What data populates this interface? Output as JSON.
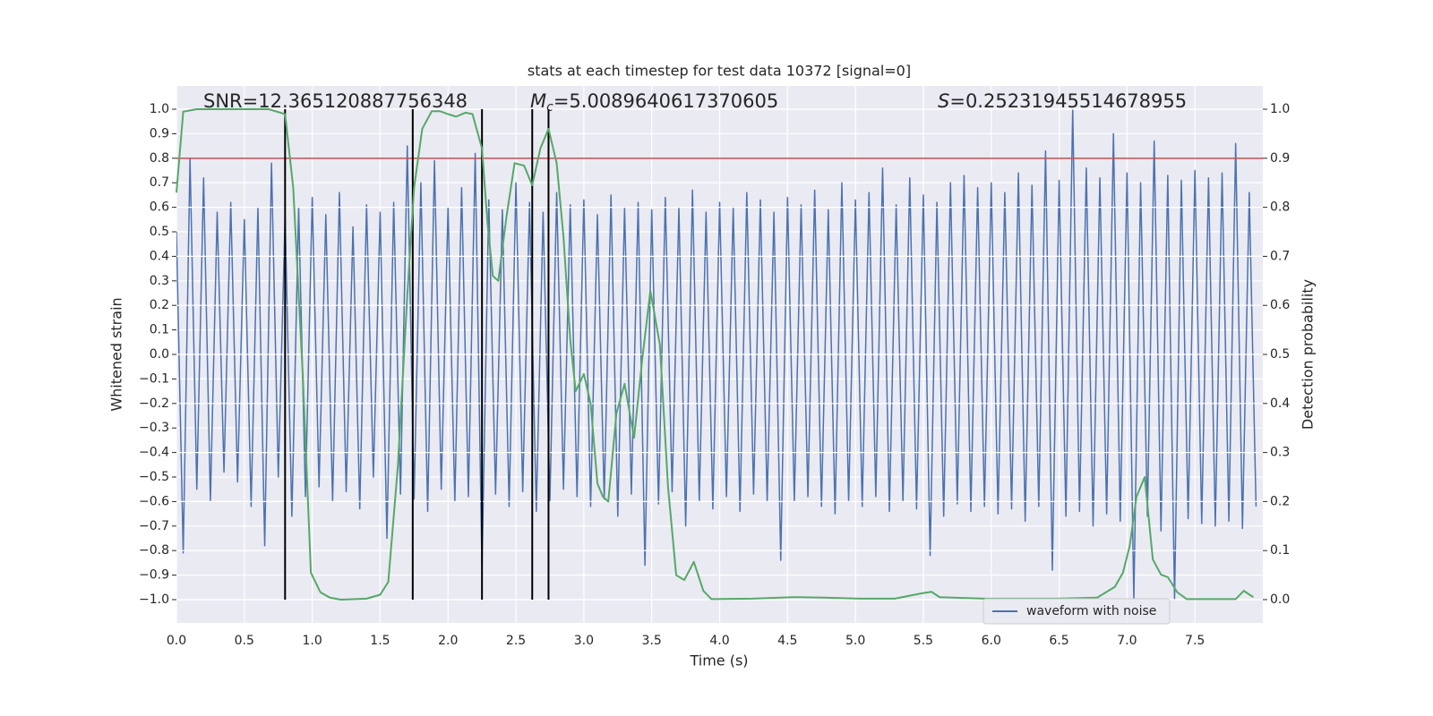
{
  "chart_data": {
    "type": "line",
    "title": "stats at each timestep for test data 10372 [signal=0]",
    "xlabel": "Time (s)",
    "ylabel": "Whitened strain",
    "y2label": "Detection probability",
    "xlim": [
      0,
      8.0
    ],
    "ylim": [
      -1.095,
      1.095
    ],
    "y2lim": [
      -0.0475,
      1.0475
    ],
    "xticks": [
      {
        "value": 0,
        "label": "0.0"
      },
      0.5,
      {
        "value": 1,
        "label": "1.0"
      },
      1.5,
      {
        "value": 2,
        "label": "2.0"
      },
      2.5,
      {
        "value": 3,
        "label": "3.0"
      },
      3.5,
      {
        "value": 4,
        "label": "4.0"
      },
      4.5,
      {
        "value": 5,
        "label": "5.0"
      },
      5.5,
      {
        "value": 6,
        "label": "6.0"
      },
      6.5,
      {
        "value": 7,
        "label": "7.0"
      },
      7.5
    ],
    "yticks": [
      {
        "value": -1,
        "label": "−1.0"
      },
      {
        "value": -0.9,
        "label": "−0.9"
      },
      {
        "value": -0.8,
        "label": "−0.8"
      },
      {
        "value": -0.7,
        "label": "−0.7"
      },
      {
        "value": -0.6,
        "label": "−0.6"
      },
      {
        "value": -0.5,
        "label": "−0.5"
      },
      {
        "value": -0.4,
        "label": "−0.4"
      },
      {
        "value": -0.3,
        "label": "−0.3"
      },
      {
        "value": -0.2,
        "label": "−0.2"
      },
      {
        "value": -0.1,
        "label": "−0.1"
      },
      {
        "value": 0,
        "label": "0.0"
      },
      0.1,
      0.2,
      0.3,
      0.4,
      0.5,
      0.6,
      0.7,
      0.8,
      0.9,
      {
        "value": 1,
        "label": "1.0"
      }
    ],
    "y2ticks": [
      {
        "value": 0,
        "label": "0.0"
      },
      0.1,
      0.2,
      0.3,
      0.4,
      0.5,
      0.6,
      0.7,
      0.8,
      0.9,
      {
        "value": 1,
        "label": "1.0"
      }
    ],
    "grid": true,
    "legend": "lower right",
    "series": [
      {
        "name": "waveform with noise",
        "color": "#4c72b0",
        "x": [
          0,
          0.05,
          0.1,
          0.15,
          0.2,
          0.25,
          0.3,
          0.35,
          0.4,
          0.45,
          0.5,
          0.55,
          0.6,
          0.65,
          0.7,
          0.75,
          0.8,
          0.85,
          0.9,
          0.95,
          1,
          1.05,
          1.1,
          1.15,
          1.2,
          1.25,
          1.3,
          1.35,
          1.4,
          1.45,
          1.5,
          1.55,
          1.6,
          1.65,
          1.7,
          1.75,
          1.8,
          1.85,
          1.9,
          1.95,
          2,
          2.05,
          2.1,
          2.15,
          2.2,
          2.25,
          2.3,
          2.35,
          2.4,
          2.45,
          2.5,
          2.55,
          2.6,
          2.65,
          2.7,
          2.75,
          2.8,
          2.85,
          2.9,
          2.95,
          3,
          3.05,
          3.1,
          3.15,
          3.2,
          3.25,
          3.3,
          3.35,
          3.4,
          3.45,
          3.5,
          3.55,
          3.6,
          3.65,
          3.7,
          3.75,
          3.8,
          3.85,
          3.9,
          3.95,
          4,
          4.05,
          4.1,
          4.15,
          4.2,
          4.25,
          4.3,
          4.35,
          4.4,
          4.45,
          4.5,
          4.55,
          4.6,
          4.65,
          4.7,
          4.75,
          4.8,
          4.85,
          4.9,
          4.95,
          5,
          5.05,
          5.1,
          5.15,
          5.2,
          5.25,
          5.3,
          5.35,
          5.4,
          5.45,
          5.5,
          5.55,
          5.6,
          5.65,
          5.7,
          5.75,
          5.8,
          5.85,
          5.9,
          5.95,
          6,
          6.05,
          6.1,
          6.15,
          6.2,
          6.25,
          6.3,
          6.35,
          6.4,
          6.45,
          6.5,
          6.55,
          6.6,
          6.65,
          6.7,
          6.75,
          6.8,
          6.85,
          6.9,
          6.95,
          7,
          7.05,
          7.1,
          7.15,
          7.2,
          7.25,
          7.3,
          7.35,
          7.4,
          7.45,
          7.5,
          7.55,
          7.6,
          7.65,
          7.7,
          7.75,
          7.8,
          7.85,
          7.9,
          7.95
        ],
        "values": [
          0.5,
          -0.81,
          0.8,
          -0.55,
          0.72,
          -0.6,
          0.58,
          -0.48,
          0.62,
          -0.52,
          0.55,
          -0.62,
          0.6,
          -0.78,
          0.78,
          -0.5,
          0.56,
          -0.66,
          0.6,
          -0.58,
          0.64,
          -0.54,
          0.57,
          -0.6,
          0.66,
          -0.56,
          0.52,
          -0.63,
          0.61,
          -0.5,
          0.58,
          -0.75,
          0.62,
          -0.57,
          0.85,
          -0.59,
          0.7,
          -0.64,
          0.79,
          -0.55,
          0.6,
          -0.6,
          0.68,
          -0.58,
          0.82,
          -0.88,
          0.63,
          -0.57,
          0.59,
          -0.62,
          0.7,
          -0.56,
          0.62,
          -0.64,
          0.58,
          -0.6,
          0.66,
          -0.55,
          0.61,
          -0.58,
          0.63,
          -0.62,
          0.57,
          -0.59,
          0.65,
          -0.66,
          0.6,
          -0.57,
          0.62,
          -0.86,
          0.59,
          -0.61,
          0.64,
          -0.56,
          0.6,
          -0.7,
          0.67,
          -0.6,
          0.58,
          -0.63,
          0.62,
          -0.58,
          0.6,
          -0.64,
          0.66,
          -0.57,
          0.63,
          -0.6,
          0.58,
          -0.84,
          0.64,
          -0.6,
          0.61,
          -0.58,
          0.67,
          -0.62,
          0.59,
          -0.65,
          0.7,
          -0.6,
          0.63,
          -0.62,
          0.66,
          -0.58,
          0.76,
          -0.64,
          0.61,
          -0.6,
          0.72,
          -0.63,
          0.65,
          -0.82,
          0.62,
          -0.66,
          0.7,
          -0.61,
          0.73,
          -0.64,
          0.68,
          -0.62,
          0.7,
          -0.65,
          0.66,
          -0.63,
          0.74,
          -0.68,
          0.69,
          -0.62,
          0.83,
          -0.88,
          0.71,
          -0.66,
          1.0,
          -0.64,
          0.76,
          -0.7,
          0.72,
          -0.65,
          0.9,
          -0.68,
          0.74,
          -1.0,
          0.7,
          -0.66,
          0.87,
          -0.72,
          0.73,
          -1.0,
          0.71,
          -0.67,
          0.75,
          -0.69,
          0.72,
          -0.7,
          0.74,
          -0.68,
          0.86,
          -0.71,
          0.66,
          -0.62
        ]
      },
      {
        "color": "#55a868",
        "axis": "y2",
        "x": [
          0,
          0.05,
          0.15,
          0.42,
          0.68,
          0.8,
          0.86,
          0.93,
          0.99,
          1.06,
          1.13,
          1.21,
          1.4,
          1.5,
          1.56,
          1.63,
          1.7,
          1.75,
          1.81,
          1.88,
          1.94,
          2.0,
          2.06,
          2.13,
          2.18,
          2.25,
          2.29,
          2.33,
          2.37,
          2.43,
          2.49,
          2.56,
          2.62,
          2.68,
          2.74,
          2.8,
          2.85,
          2.9,
          2.94,
          3.0,
          3.05,
          3.1,
          3.14,
          3.18,
          3.24,
          3.3,
          3.37,
          3.43,
          3.49,
          3.56,
          3.62,
          3.68,
          3.74,
          3.81,
          3.88,
          3.94,
          4.24,
          4.54,
          4.77,
          5.03,
          5.29,
          5.49,
          5.56,
          5.62,
          5.95,
          6.48,
          6.78,
          6.91,
          6.97,
          7.02,
          7.07,
          7.13,
          7.19,
          7.25,
          7.3,
          7.37,
          7.44,
          7.8,
          7.86,
          7.93
        ],
        "values": [
          0.83,
          0.995,
          1.0,
          1.0,
          1.0,
          0.99,
          0.84,
          0.46,
          0.055,
          0.015,
          0.004,
          0.0,
          0.002,
          0.01,
          0.036,
          0.27,
          0.62,
          0.84,
          0.96,
          0.996,
          0.996,
          0.99,
          0.985,
          0.993,
          0.99,
          0.92,
          0.77,
          0.66,
          0.65,
          0.78,
          0.89,
          0.885,
          0.845,
          0.92,
          0.96,
          0.89,
          0.74,
          0.53,
          0.425,
          0.46,
          0.4,
          0.237,
          0.21,
          0.2,
          0.38,
          0.44,
          0.33,
          0.49,
          0.63,
          0.52,
          0.23,
          0.05,
          0.04,
          0.077,
          0.018,
          0.001,
          0.002,
          0.005,
          0.004,
          0.002,
          0.002,
          0.013,
          0.016,
          0.005,
          0.002,
          0.002,
          0.004,
          0.026,
          0.055,
          0.11,
          0.21,
          0.25,
          0.082,
          0.051,
          0.046,
          0.015,
          0.001,
          0.001,
          0.018,
          0.005
        ]
      }
    ],
    "threshold": {
      "value": 0.9,
      "axis": "y2",
      "color": "#c44e52"
    },
    "vlines": [
      0.8,
      1.74,
      2.25,
      2.62,
      2.74
    ],
    "vline_span": [
      -1,
      1
    ],
    "vline_color": "#000000",
    "annotations": [
      {
        "text": "SNR=12.365120887756348"
      },
      {
        "symbol": "M",
        "subscript": "c",
        "text": "=5.0089640617370605"
      },
      {
        "symbol": "S",
        "text": "=0.25231945514678955"
      }
    ]
  }
}
